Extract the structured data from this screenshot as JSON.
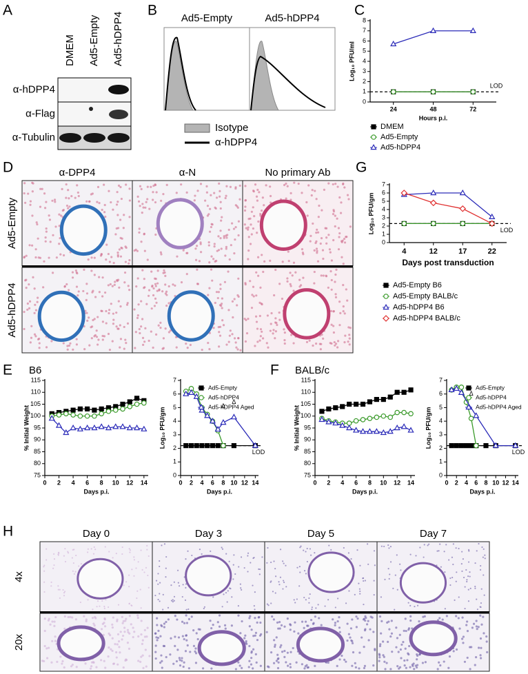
{
  "letters": [
    "A",
    "B",
    "C",
    "D",
    "E",
    "F",
    "G",
    "H"
  ],
  "blot": {
    "lanes": [
      "DMEM",
      "Ad5-Empty",
      "Ad5-hDPP4"
    ],
    "rows": [
      "α-hDPP4",
      "α-Flag",
      "α-Tubulin"
    ]
  },
  "flow": {
    "titles": [
      "Ad5-Empty",
      "Ad5-hDPP4"
    ],
    "legend": [
      "Isotype",
      "α-hDPP4"
    ]
  },
  "histology": {
    "columns": [
      "α-DPP4",
      "α-N",
      "No primary Ab"
    ],
    "rows": [
      "Ad5-Empty",
      "Ad5-hDPP4"
    ]
  },
  "strain_titles": [
    "B6",
    "BALB/c"
  ],
  "time_course": {
    "columns": [
      "Day 0",
      "Day 3",
      "Day 5",
      "Day 7"
    ],
    "rows": [
      "4x",
      "20x"
    ]
  },
  "chart_data": [
    {
      "type": "line",
      "x": [
        24,
        48,
        72
      ],
      "xlim": [
        10,
        86
      ],
      "xticks": [
        24,
        48,
        72
      ],
      "ylim": [
        0,
        8
      ],
      "yticks": [
        0,
        1,
        2,
        3,
        4,
        5,
        6,
        7,
        8
      ],
      "xlabel": "Hours p.i.",
      "ylabel": "Log₁₀ PFU/ml",
      "lod": 1,
      "lod_label": "LOD",
      "legend": "below",
      "series": [
        {
          "name": "DMEM",
          "color": "#000000",
          "marker": "square",
          "values": [
            1,
            1,
            1
          ]
        },
        {
          "name": "Ad5-Empty",
          "color": "#3a9a2a",
          "marker": "circle",
          "values": [
            1,
            1,
            1
          ]
        },
        {
          "name": "Ad5-hDPP4",
          "color": "#2a2ab8",
          "marker": "triangle",
          "values": [
            5.7,
            7.0,
            7.0
          ]
        }
      ]
    },
    {
      "type": "line",
      "categories": [
        "4",
        "12",
        "17",
        "22"
      ],
      "ylim": [
        0,
        7
      ],
      "yticks": [
        0,
        1,
        2,
        3,
        4,
        5,
        6,
        7
      ],
      "xlabel": "Days post transduction",
      "ylabel": "Log₁₀ PFU/gm",
      "lod": 2.3,
      "lod_label": "LOD",
      "legend": "below",
      "series": [
        {
          "name": "Ad5-Empty B6",
          "color": "#000000",
          "marker": "square",
          "values": [
            2.3,
            2.3,
            2.3,
            2.3
          ]
        },
        {
          "name": "Ad5-Empty BALB/c",
          "color": "#3a9a2a",
          "marker": "circle",
          "values": [
            2.3,
            2.3,
            2.3,
            2.3
          ]
        },
        {
          "name": "Ad5-hDPP4 B6",
          "color": "#2a2ab8",
          "marker": "triangle",
          "values": [
            5.8,
            6.0,
            6.0,
            3.1
          ]
        },
        {
          "name": "Ad5-hDPP4 BALB/c",
          "color": "#e03030",
          "marker": "diamond",
          "values": [
            6.0,
            4.8,
            4.1,
            2.3
          ]
        }
      ]
    },
    {
      "type": "line",
      "x": [
        1,
        2,
        3,
        4,
        5,
        6,
        7,
        8,
        9,
        10,
        11,
        12,
        13,
        14
      ],
      "xlim": [
        0,
        14.6
      ],
      "xticks": [
        0,
        2,
        4,
        6,
        8,
        10,
        12,
        14
      ],
      "ylim": [
        75,
        115
      ],
      "yticks": [
        75,
        80,
        85,
        90,
        95,
        100,
        105,
        110,
        115
      ],
      "xlabel": "Days p.i.",
      "ylabel": "% Initial Weight",
      "series": [
        {
          "color": "#000000",
          "marker": "square",
          "values": [
            101,
            101.5,
            102,
            102.5,
            103,
            103,
            102.5,
            103,
            103.5,
            104,
            105,
            106,
            107.5,
            106.5
          ]
        },
        {
          "color": "#3a9a2a",
          "marker": "circle",
          "values": [
            100,
            100.5,
            101,
            100.5,
            100,
            100,
            100,
            101,
            102,
            102.5,
            103,
            104,
            105,
            105.5
          ]
        },
        {
          "color": "#2a2ab8",
          "marker": "triangle",
          "values": [
            99,
            96,
            93,
            95,
            94.5,
            95,
            95,
            95.5,
            95,
            95.5,
            95.5,
            95,
            95,
            94.5
          ]
        }
      ]
    },
    {
      "type": "line",
      "x": [
        1,
        2,
        3,
        4,
        5,
        6,
        7,
        8,
        10,
        14
      ],
      "xlim": [
        0,
        14.6
      ],
      "xticks": [
        0,
        2,
        4,
        6,
        8,
        10,
        12,
        14
      ],
      "ylim": [
        0,
        7
      ],
      "yticks": [
        0,
        1,
        2,
        3,
        4,
        5,
        6,
        7
      ],
      "xlabel": "Days p.i.",
      "ylabel": "Log₁₀ PFU/gm",
      "lod": 2.2,
      "lod_label": "LOD",
      "legend": "upper right",
      "annotations": [
        {
          "text": "Δ",
          "x": 8,
          "y": 5.1
        },
        {
          "text": "Δ",
          "x": 10,
          "y": 5.4
        }
      ],
      "series": [
        {
          "name": "Ad5-Empty",
          "color": "#000000",
          "marker": "square",
          "values": [
            2.2,
            2.2,
            2.2,
            2.2,
            2.2,
            2.2,
            2.2,
            2.2,
            2.2,
            2.2
          ]
        },
        {
          "name": "Ad5-hDPP4",
          "color": "#3a9a2a",
          "marker": "circle",
          "values": [
            6.2,
            6.4,
            6.0,
            5.0,
            4.5,
            4.0,
            3.3,
            2.2,
            null,
            null
          ]
        },
        {
          "name": "Ad5-hDPP4 Aged",
          "color": "#2a2ab8",
          "marker": "triangle",
          "values": [
            6.0,
            6.1,
            5.8,
            4.8,
            4.4,
            4.0,
            3.4,
            3.9,
            4.3,
            2.2
          ]
        }
      ]
    },
    {
      "type": "line",
      "x": [
        1,
        2,
        3,
        4,
        5,
        6,
        7,
        8,
        9,
        10,
        11,
        12,
        13,
        14
      ],
      "xlim": [
        0,
        14.6
      ],
      "xticks": [
        0,
        2,
        4,
        6,
        8,
        10,
        12,
        14
      ],
      "ylim": [
        75,
        115
      ],
      "yticks": [
        75,
        80,
        85,
        90,
        95,
        100,
        105,
        110,
        115
      ],
      "xlabel": "Days p.i.",
      "ylabel": "% Initial Weight",
      "series": [
        {
          "color": "#000000",
          "marker": "square",
          "values": [
            102,
            103,
            103.5,
            104,
            105,
            105,
            105,
            106,
            107,
            107,
            108,
            110,
            110,
            111
          ]
        },
        {
          "color": "#3a9a2a",
          "marker": "circle",
          "values": [
            99,
            98,
            97.5,
            97,
            97,
            98,
            98.5,
            99,
            99.5,
            100,
            99.5,
            101.5,
            101.5,
            101
          ]
        },
        {
          "color": "#2a2ab8",
          "marker": "triangle",
          "values": [
            98.5,
            97.5,
            97,
            96,
            95,
            94,
            93.5,
            93.5,
            93.5,
            93,
            93.5,
            95,
            95.5,
            94
          ]
        }
      ]
    },
    {
      "type": "line",
      "x": [
        1,
        2,
        3,
        4,
        5,
        6,
        8,
        10,
        14
      ],
      "xlim": [
        0,
        14.6
      ],
      "xticks": [
        0,
        2,
        4,
        6,
        8,
        10,
        12,
        14
      ],
      "ylim": [
        0,
        7
      ],
      "yticks": [
        0,
        1,
        2,
        3,
        4,
        5,
        6,
        7
      ],
      "xlabel": "Days p.i.",
      "ylabel": "Log₁₀ PFU/gm",
      "lod": 2.2,
      "lod_label": "LOD",
      "legend": "upper right",
      "annotations": [
        {
          "text": "Δ",
          "x": 5,
          "y": 6.0
        }
      ],
      "series": [
        {
          "name": "Ad5-Empty",
          "color": "#000000",
          "marker": "square",
          "values": [
            2.2,
            2.2,
            2.2,
            2.2,
            2.2,
            2.2,
            2.2,
            2.2,
            2.2
          ]
        },
        {
          "name": "Ad5-hDPP4",
          "color": "#3a9a2a",
          "marker": "circle",
          "values": [
            6.3,
            6.5,
            6.5,
            5.4,
            4.2,
            2.2,
            null,
            null,
            null
          ]
        },
        {
          "name": "Ad5-hDPP4 Aged",
          "color": "#2a2ab8",
          "marker": "triangle",
          "x": [
            1,
            2,
            3,
            6,
            10,
            14
          ],
          "values": [
            6.3,
            6.4,
            6.1,
            4.4,
            2.2,
            2.2
          ]
        }
      ]
    }
  ]
}
